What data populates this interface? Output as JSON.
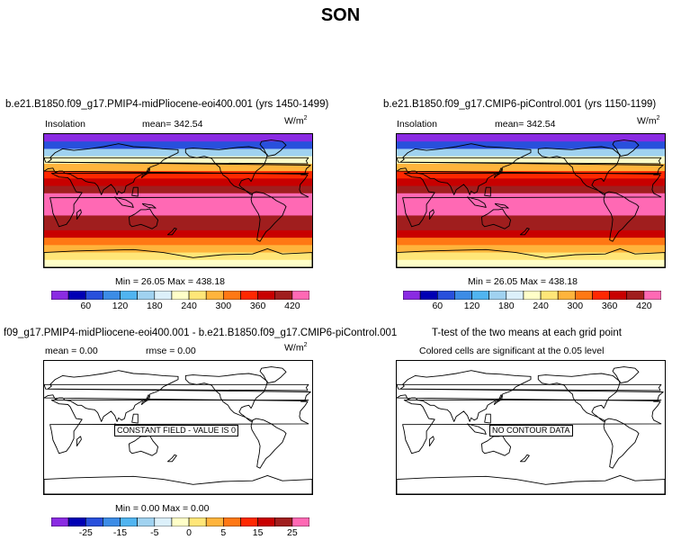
{
  "figure": {
    "title": "SON"
  },
  "panels": [
    {
      "id": "p1",
      "title": "b.e21.B1850.f09_g17.PMIP4-midPliocene-eoi400.001 (yrs 1450-1499)",
      "left_label": "Insolation",
      "mean_text": "mean=  342.54",
      "units": "W/m",
      "units_sup": "2",
      "minmax": "Min =   26.05  Max =  438.18"
    },
    {
      "id": "p2",
      "title": "b.e21.B1850.f09_g17.CMIP6-piControl.001 (yrs 1150-1199)",
      "left_label": "Insolation",
      "mean_text": "mean=  342.54",
      "units": "W/m",
      "units_sup": "2",
      "minmax": "Min =   26.05  Max =  438.18"
    },
    {
      "id": "p3",
      "title": "f09_g17.PMIP4-midPliocene-eoi400.001 - b.e21.B1850.f09_g17.CMIP6-piControl.001",
      "left_label": "mean =     0.00",
      "mean_text": "rmse =     0.00",
      "units": "W/m",
      "units_sup": "2",
      "note": "CONSTANT FIELD - VALUE IS 0",
      "minmax": "Min =    0.00  Max =    0.00"
    },
    {
      "id": "p4",
      "title": "T-test of the two means at each grid point",
      "subtitle": "Colored cells are significant at the 0.05 level",
      "note": "NO CONTOUR DATA"
    }
  ],
  "colorbars": {
    "colors": [
      "#8a2be2",
      "#0000b4",
      "#2850dc",
      "#3c8ce6",
      "#50b4f0",
      "#a0d2f0",
      "#dcf0fa",
      "#ffffc8",
      "#ffe678",
      "#ffb43c",
      "#ff7814",
      "#ff2800",
      "#c80000",
      "#a01e1e",
      "#ff69b4"
    ],
    "absolute": {
      "ticks": [
        "60",
        "120",
        "180",
        "240",
        "300",
        "360",
        "420"
      ]
    },
    "difference": {
      "ticks": [
        "-25",
        "-15",
        "-5",
        "0",
        "5",
        "15",
        "25"
      ]
    }
  },
  "chart_data": [
    {
      "type": "heatmap",
      "title": "b.e21.B1850.f09_g17.PMIP4-midPliocene-eoi400.001 (yrs 1450-1499)",
      "variable": "Insolation",
      "units": "W/m2",
      "mean": 342.54,
      "min": 26.05,
      "max": 438.18,
      "colorbar_ticks": [
        60,
        120,
        180,
        240,
        300,
        360,
        420
      ],
      "zonal_profile": {
        "lat": [
          85,
          75,
          65,
          55,
          45,
          35,
          25,
          15,
          5,
          -5,
          -15,
          -25,
          -35,
          -45,
          -55,
          -65,
          -75,
          -85
        ],
        "value": [
          40,
          90,
          170,
          235,
          300,
          360,
          395,
          420,
          435,
          438,
          437,
          430,
          410,
          380,
          340,
          290,
          260,
          245
        ]
      }
    },
    {
      "type": "heatmap",
      "title": "b.e21.B1850.f09_g17.CMIP6-piControl.001 (yrs 1150-1199)",
      "variable": "Insolation",
      "units": "W/m2",
      "mean": 342.54,
      "min": 26.05,
      "max": 438.18,
      "colorbar_ticks": [
        60,
        120,
        180,
        240,
        300,
        360,
        420
      ],
      "zonal_profile": {
        "lat": [
          85,
          75,
          65,
          55,
          45,
          35,
          25,
          15,
          5,
          -5,
          -15,
          -25,
          -35,
          -45,
          -55,
          -65,
          -75,
          -85
        ],
        "value": [
          40,
          90,
          170,
          235,
          300,
          360,
          395,
          420,
          435,
          438,
          437,
          430,
          410,
          380,
          340,
          290,
          260,
          245
        ]
      }
    },
    {
      "type": "heatmap",
      "title": "f09_g17.PMIP4-midPliocene-eoi400.001 - b.e21.B1850.f09_g17.CMIP6-piControl.001",
      "units": "W/m2",
      "mean": 0.0,
      "rmse": 0.0,
      "min": 0.0,
      "max": 0.0,
      "annotation": "CONSTANT FIELD - VALUE IS 0",
      "colorbar_ticks": [
        -25,
        -15,
        -5,
        0,
        5,
        15,
        25
      ]
    },
    {
      "type": "heatmap",
      "title": "T-test of the two means at each grid point",
      "subtitle": "Colored cells are significant at the 0.05 level",
      "annotation": "NO CONTOUR DATA"
    }
  ]
}
